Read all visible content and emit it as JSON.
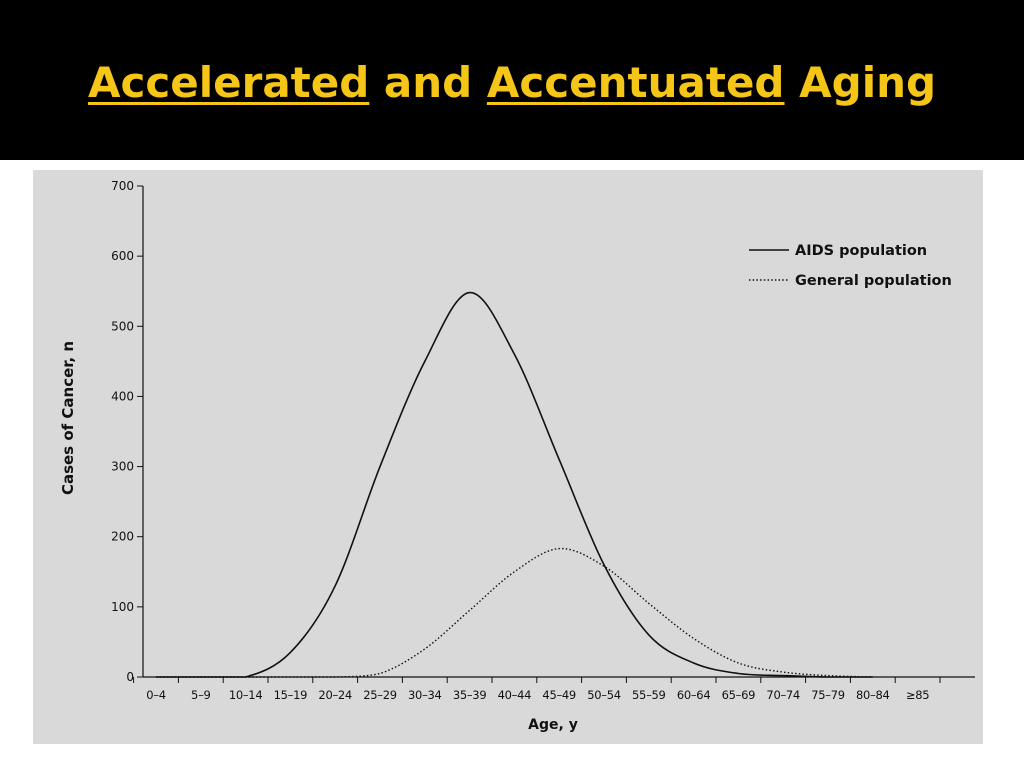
{
  "slide": {
    "title_parts": [
      {
        "text": "Accelerated",
        "underline": true
      },
      {
        "text": " and ",
        "underline": false
      },
      {
        "text": "Accentuated",
        "underline": true
      },
      {
        "text": " Aging",
        "underline": false
      }
    ],
    "title_color": "#f5c518",
    "background": "#000000"
  },
  "chart_data": {
    "type": "line",
    "title": "",
    "xlabel": "Age, y",
    "ylabel": "Cases of Cancer, n",
    "categories": [
      "0–4",
      "5–9",
      "10–14",
      "15–19",
      "20–24",
      "25–29",
      "30–34",
      "35–39",
      "40–44",
      "45–49",
      "50–54",
      "55–59",
      "60–64",
      "65–69",
      "70–74",
      "75–79",
      "80–84",
      "≥85"
    ],
    "ylim": [
      0,
      700
    ],
    "yticks": [
      0,
      100,
      200,
      300,
      400,
      500,
      600,
      700
    ],
    "grid": false,
    "legend_position": "top-right",
    "series": [
      {
        "name": "AIDS population",
        "style": "solid",
        "values": [
          0,
          0,
          0,
          35,
          130,
          300,
          450,
          548,
          460,
          310,
          160,
          60,
          20,
          5,
          2,
          0,
          0,
          null
        ]
      },
      {
        "name": "General population",
        "style": "dotted",
        "values": [
          0,
          0,
          0,
          0,
          0,
          5,
          40,
          95,
          150,
          183,
          158,
          105,
          55,
          20,
          7,
          2,
          0,
          null
        ]
      }
    ]
  }
}
